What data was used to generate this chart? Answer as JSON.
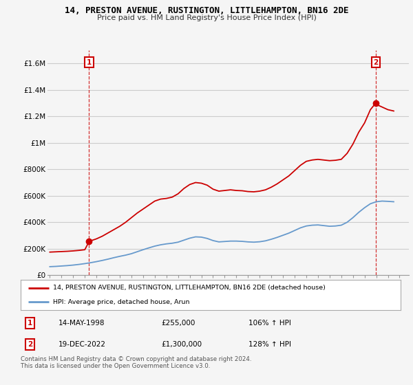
{
  "title": "14, PRESTON AVENUE, RUSTINGTON, LITTLEHAMPTON, BN16 2DE",
  "subtitle": "Price paid vs. HM Land Registry's House Price Index (HPI)",
  "red_line_label": "14, PRESTON AVENUE, RUSTINGTON, LITTLEHAMPTON, BN16 2DE (detached house)",
  "blue_line_label": "HPI: Average price, detached house, Arun",
  "transaction1_date": "14-MAY-1998",
  "transaction1_price": "£255,000",
  "transaction1_hpi": "106% ↑ HPI",
  "transaction2_date": "19-DEC-2022",
  "transaction2_price": "£1,300,000",
  "transaction2_hpi": "128% ↑ HPI",
  "footer": "Contains HM Land Registry data © Crown copyright and database right 2024.\nThis data is licensed under the Open Government Licence v3.0.",
  "ylim": [
    0,
    1700000
  ],
  "xlim_start": 1994.8,
  "xlim_end": 2025.8,
  "yticks": [
    0,
    200000,
    400000,
    600000,
    800000,
    1000000,
    1200000,
    1400000,
    1600000
  ],
  "ytick_labels": [
    "£0",
    "£200K",
    "£400K",
    "£600K",
    "£800K",
    "£1M",
    "£1.2M",
    "£1.4M",
    "£1.6M"
  ],
  "red_color": "#cc0000",
  "blue_color": "#6699cc",
  "background_color": "#f5f5f5",
  "grid_color": "#cccccc",
  "transaction1_x": 1998.37,
  "transaction1_y": 255000,
  "transaction2_x": 2022.96,
  "transaction2_y": 1300000,
  "red_x": [
    1995.0,
    1995.5,
    1996.0,
    1996.5,
    1997.0,
    1997.5,
    1998.0,
    1998.37,
    1998.5,
    1999.0,
    1999.5,
    2000.0,
    2000.5,
    2001.0,
    2001.5,
    2002.0,
    2002.5,
    2003.0,
    2003.5,
    2004.0,
    2004.5,
    2005.0,
    2005.5,
    2006.0,
    2006.5,
    2007.0,
    2007.5,
    2008.0,
    2008.5,
    2009.0,
    2009.5,
    2010.0,
    2010.5,
    2011.0,
    2011.5,
    2012.0,
    2012.5,
    2013.0,
    2013.5,
    2014.0,
    2014.5,
    2015.0,
    2015.5,
    2016.0,
    2016.5,
    2017.0,
    2017.5,
    2018.0,
    2018.5,
    2019.0,
    2019.5,
    2020.0,
    2020.5,
    2021.0,
    2021.5,
    2022.0,
    2022.5,
    2022.96,
    2023.0,
    2023.5,
    2024.0,
    2024.5
  ],
  "red_y": [
    175000,
    177000,
    179000,
    181000,
    184000,
    188000,
    193000,
    255000,
    260000,
    275000,
    295000,
    320000,
    345000,
    370000,
    400000,
    435000,
    470000,
    500000,
    530000,
    560000,
    575000,
    580000,
    590000,
    615000,
    655000,
    685000,
    700000,
    695000,
    680000,
    650000,
    635000,
    640000,
    645000,
    640000,
    638000,
    632000,
    630000,
    635000,
    645000,
    665000,
    690000,
    720000,
    750000,
    790000,
    830000,
    860000,
    870000,
    875000,
    870000,
    865000,
    868000,
    875000,
    920000,
    990000,
    1080000,
    1150000,
    1250000,
    1300000,
    1290000,
    1270000,
    1250000,
    1240000
  ],
  "blue_x": [
    1995.0,
    1995.5,
    1996.0,
    1996.5,
    1997.0,
    1997.5,
    1998.0,
    1998.5,
    1999.0,
    1999.5,
    2000.0,
    2000.5,
    2001.0,
    2001.5,
    2002.0,
    2002.5,
    2003.0,
    2003.5,
    2004.0,
    2004.5,
    2005.0,
    2005.5,
    2006.0,
    2006.5,
    2007.0,
    2007.5,
    2008.0,
    2008.5,
    2009.0,
    2009.5,
    2010.0,
    2010.5,
    2011.0,
    2011.5,
    2012.0,
    2012.5,
    2013.0,
    2013.5,
    2014.0,
    2014.5,
    2015.0,
    2015.5,
    2016.0,
    2016.5,
    2017.0,
    2017.5,
    2018.0,
    2018.5,
    2019.0,
    2019.5,
    2020.0,
    2020.5,
    2021.0,
    2021.5,
    2022.0,
    2022.5,
    2023.0,
    2023.5,
    2024.0,
    2024.5
  ],
  "blue_y": [
    65000,
    67000,
    70000,
    73000,
    77000,
    82000,
    88000,
    95000,
    103000,
    112000,
    122000,
    133000,
    143000,
    152000,
    163000,
    178000,
    193000,
    207000,
    220000,
    230000,
    237000,
    242000,
    250000,
    265000,
    280000,
    290000,
    288000,
    278000,
    262000,
    252000,
    255000,
    258000,
    258000,
    256000,
    252000,
    250000,
    253000,
    260000,
    272000,
    286000,
    302000,
    318000,
    338000,
    358000,
    372000,
    378000,
    380000,
    375000,
    370000,
    372000,
    378000,
    400000,
    435000,
    475000,
    510000,
    540000,
    555000,
    560000,
    558000,
    555000
  ]
}
